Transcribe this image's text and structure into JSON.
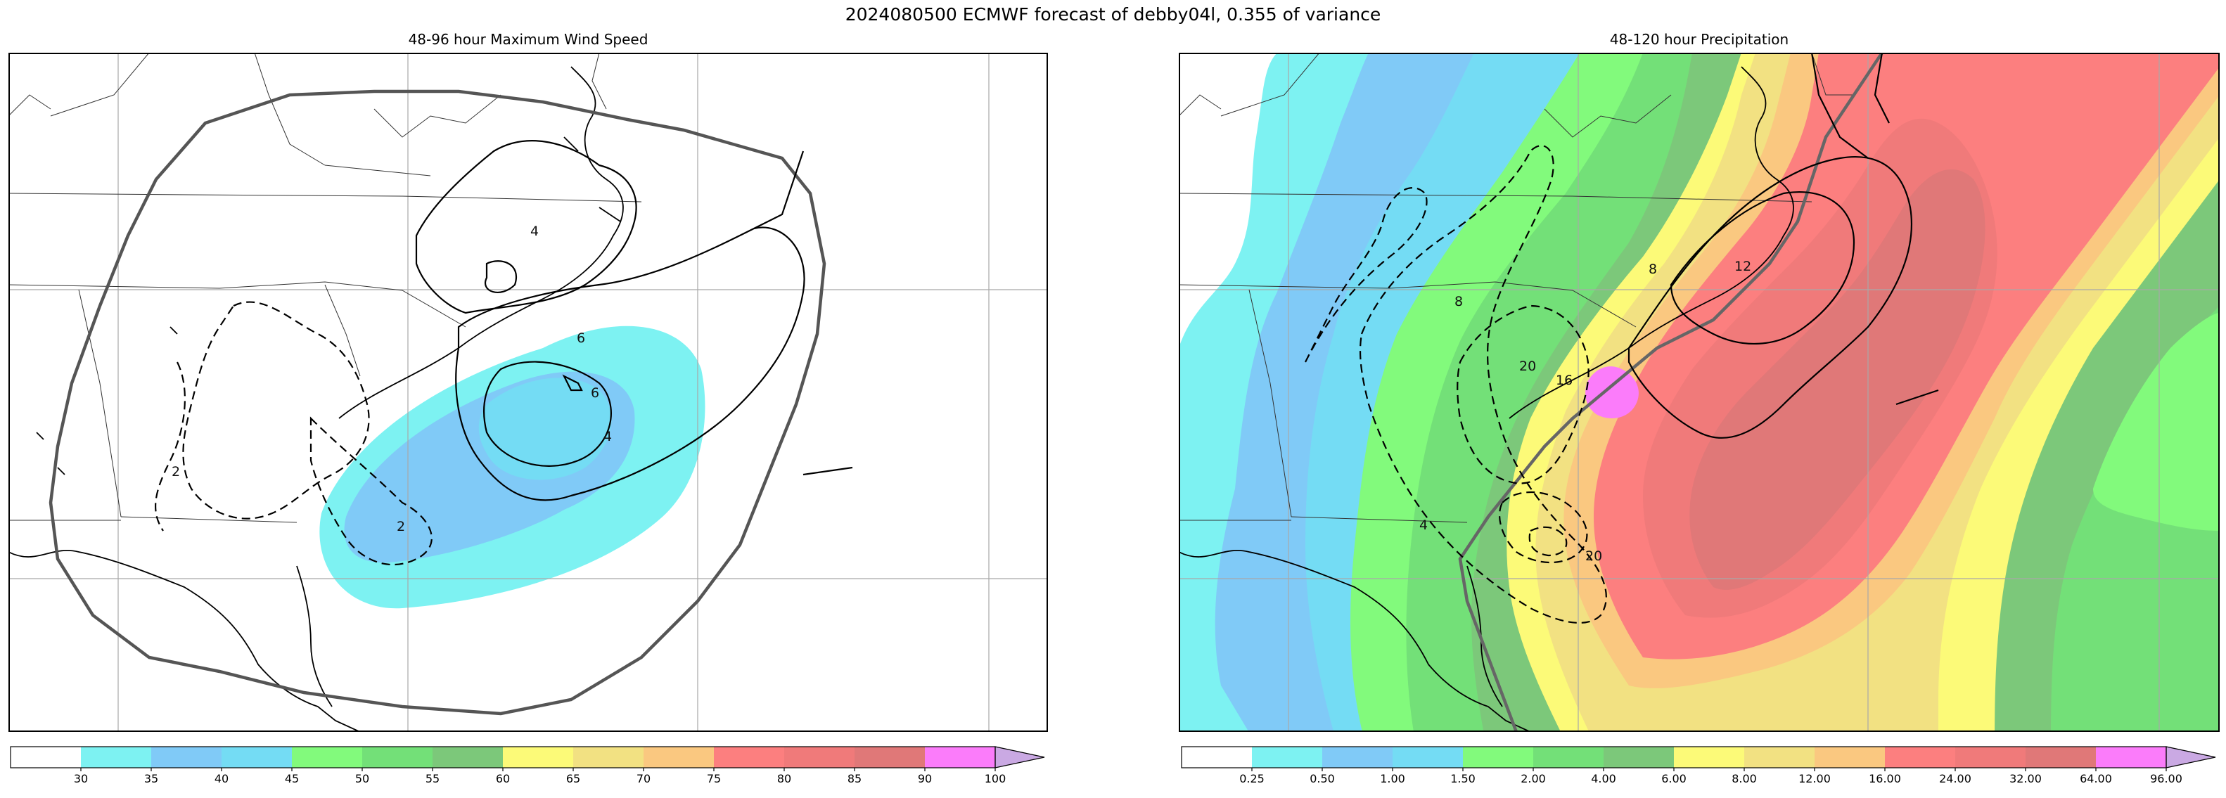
{
  "figure": {
    "suptitle": "2024080500 ECMWF forecast of debby04l, 0.355 of variance"
  },
  "panels": [
    {
      "id": "left",
      "title": "48-96 hour Maximum Wind Speed",
      "colorbar": {
        "ticks": [
          "30",
          "35",
          "40",
          "45",
          "50",
          "55",
          "60",
          "65",
          "70",
          "75",
          "80",
          "85",
          "90",
          "100"
        ],
        "colors": [
          "#ffffff",
          "#7df2f2",
          "#80caf7",
          "#74dcf4",
          "#82fa7c",
          "#73e078",
          "#7cc87a",
          "#fcfa78",
          "#f2e182",
          "#fac880",
          "#fc7f7f",
          "#f07a7a",
          "#e07878",
          "#fb7cfa",
          "#caa9e3"
        ],
        "extend": "max"
      },
      "contour_labels": [
        "4",
        "6",
        "6",
        "4",
        "2",
        "2"
      ]
    },
    {
      "id": "right",
      "title": "48-120 hour Precipitation",
      "colorbar": {
        "ticks": [
          "0.25",
          "0.50",
          "1.00",
          "1.50",
          "2.00",
          "4.00",
          "6.00",
          "8.00",
          "12.00",
          "16.00",
          "24.00",
          "32.00",
          "64.00",
          "96.00"
        ],
        "colors": [
          "#ffffff",
          "#7df2f2",
          "#80caf7",
          "#74dcf4",
          "#82fa7c",
          "#73e078",
          "#7cc87a",
          "#fcfa78",
          "#f2e182",
          "#fac880",
          "#fc7f7f",
          "#f07a7a",
          "#e07878",
          "#fb7cfa",
          "#caa9e3"
        ],
        "extend": "max"
      },
      "contour_labels": [
        "12",
        "8",
        "8",
        "20",
        "16",
        "4",
        "20"
      ]
    }
  ],
  "chart_data": [
    {
      "type": "heatmap",
      "title": "48-96 hour Maximum Wind Speed",
      "colorbar_levels": [
        30,
        35,
        40,
        45,
        50,
        55,
        60,
        65,
        70,
        75,
        80,
        85,
        90,
        100
      ],
      "colorbar_extend": "max",
      "contour_levels_shown": [
        -2,
        2,
        4,
        6
      ]
    },
    {
      "type": "heatmap",
      "title": "48-120 hour Precipitation",
      "colorbar_levels": [
        0.25,
        0.5,
        1.0,
        1.5,
        2.0,
        4.0,
        6.0,
        8.0,
        12.0,
        16.0,
        24.0,
        32.0,
        64.0,
        96.0
      ],
      "colorbar_extend": "max",
      "contour_levels_shown": [
        -20,
        -16,
        -8,
        -4,
        8,
        12
      ]
    }
  ]
}
